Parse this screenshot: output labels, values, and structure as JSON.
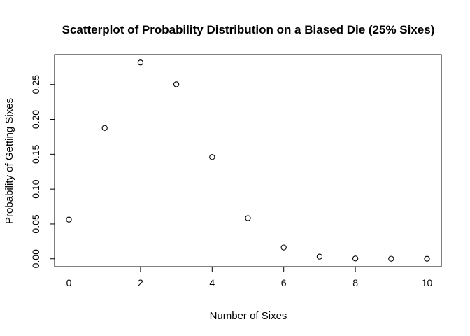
{
  "chart_data": {
    "type": "scatter",
    "title": "Scatterplot of Probability Distribution on a Biased Die (25% Sixes)",
    "xlabel": "Number of Sixes",
    "ylabel": "Probability of Getting Sixes",
    "xlim": [
      -0.4,
      10.4
    ],
    "ylim": [
      -0.0113,
      0.2929
    ],
    "x_ticks": [
      0,
      2,
      4,
      6,
      8,
      10
    ],
    "y_ticks": [
      0.0,
      0.05,
      0.1,
      0.15,
      0.2,
      0.25
    ],
    "x_tick_labels": [
      "0",
      "2",
      "4",
      "6",
      "8",
      "10"
    ],
    "y_tick_labels": [
      "0.00",
      "0.05",
      "0.10",
      "0.15",
      "0.20",
      "0.25"
    ],
    "grid": false,
    "series": [
      {
        "x": [
          0,
          1,
          2,
          3,
          4,
          5,
          6,
          7,
          8,
          9,
          10
        ],
        "y": [
          0.0563,
          0.1877,
          0.2816,
          0.2503,
          0.146,
          0.0584,
          0.0162,
          0.0031,
          0.0004,
          3e-05,
          1e-06
        ]
      }
    ]
  }
}
